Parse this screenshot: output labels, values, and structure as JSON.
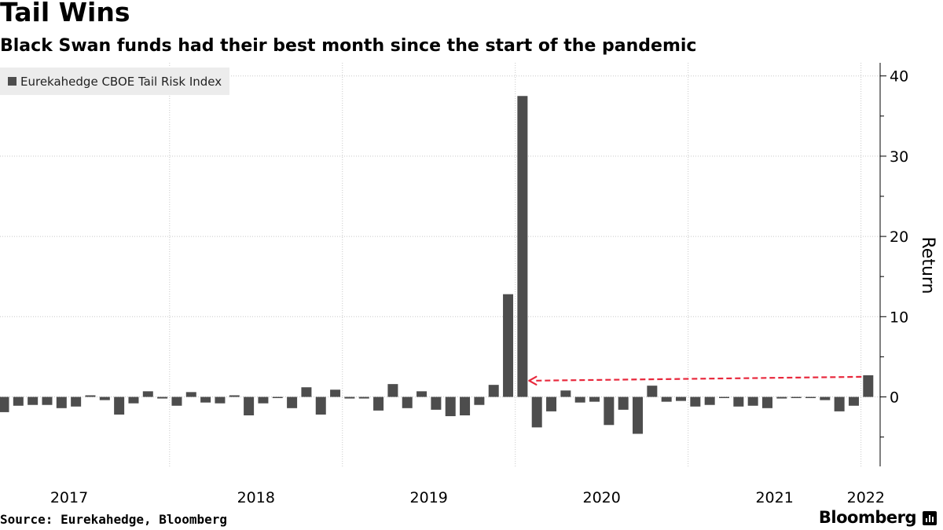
{
  "header": {
    "title": "Tail Wins",
    "subtitle": "Black Swan funds had their best month since the start of the pandemic"
  },
  "footer": {
    "source": "Source: Eurekahedge, Bloomberg",
    "brand": "Bloomberg"
  },
  "colors": {
    "bar": "#4d4d4d",
    "grid": "#c8c8c8",
    "arrow": "#e8283c",
    "legend_bg": "#ececec"
  },
  "chart_data": {
    "type": "bar",
    "ylabel": "Return",
    "ylim": [
      -7.5,
      41
    ],
    "yticks": [
      0,
      10,
      20,
      30,
      40
    ],
    "legend": {
      "entries": [
        "Eurekahedge CBOE Tail Risk Index"
      ],
      "placement": "top-left"
    },
    "grid": true,
    "year_labels": [
      "2017",
      "2018",
      "2019",
      "2020",
      "2021",
      "2022"
    ],
    "start_month": "2017-01",
    "series": [
      {
        "name": "Eurekahedge CBOE Tail Risk Index",
        "values": [
          -1.9,
          -1.1,
          -1.0,
          -1.0,
          -1.4,
          -1.2,
          0.2,
          -0.4,
          -2.2,
          -0.8,
          0.7,
          -0.2,
          -1.1,
          0.6,
          -0.7,
          -0.8,
          0.2,
          -2.3,
          -0.8,
          -0.1,
          -1.4,
          1.2,
          -2.2,
          0.9,
          -0.2,
          -0.2,
          -1.7,
          1.6,
          -1.4,
          0.7,
          -1.6,
          -2.4,
          -2.3,
          -1.0,
          1.5,
          12.8,
          37.5,
          -3.8,
          -1.8,
          0.8,
          -0.7,
          -0.6,
          -3.5,
          -1.6,
          -4.6,
          1.4,
          -0.6,
          -0.5,
          -1.2,
          -1.0,
          -0.1,
          -1.2,
          -1.1,
          -1.4,
          -0.2,
          -0.1,
          -0.1,
          -0.4,
          -1.8,
          -1.1,
          2.7
        ]
      }
    ],
    "annotation": {
      "type": "dashed-arrow",
      "from_month": "2022-01",
      "to_month": "2020-01",
      "value": 2.7
    }
  }
}
